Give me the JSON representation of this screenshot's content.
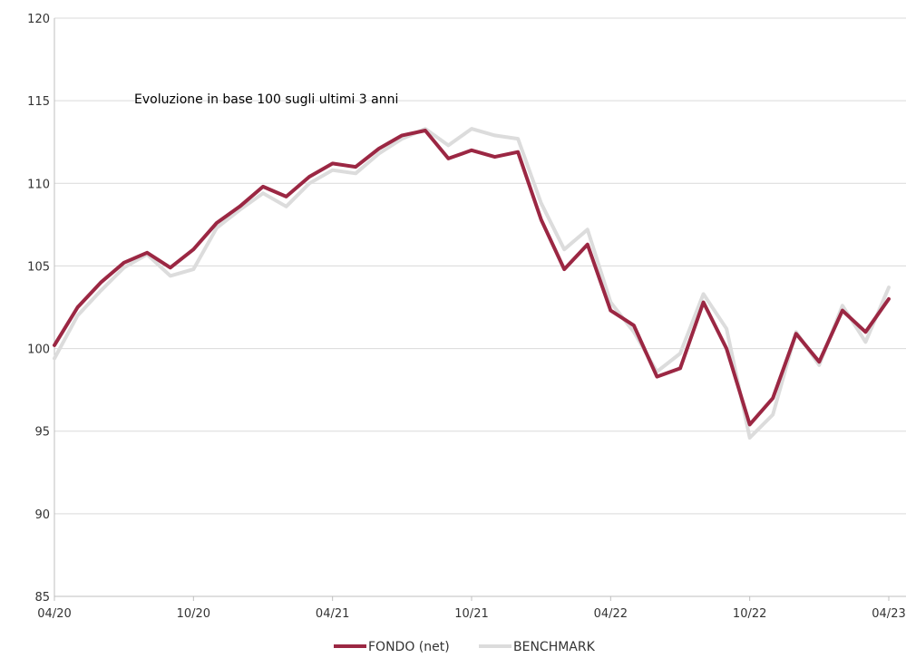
{
  "chart_data": {
    "type": "line",
    "title": "Evoluzione in base 100 sugli ultimi 3 anni",
    "xlabel": "",
    "ylabel": "",
    "x_ticks": [
      "04/20",
      "10/20",
      "04/21",
      "10/21",
      "04/22",
      "10/22",
      "04/23"
    ],
    "x_range": [
      "2020-04",
      "2023-04"
    ],
    "ylim": [
      85,
      120
    ],
    "y_ticks": [
      85,
      90,
      95,
      100,
      105,
      110,
      115,
      120
    ],
    "grid": true,
    "legend_position": "bottom-center",
    "x": [
      "04/20",
      "05/20",
      "06/20",
      "07/20",
      "08/20",
      "09/20",
      "10/20",
      "11/20",
      "12/20",
      "01/21",
      "02/21",
      "03/21",
      "04/21",
      "05/21",
      "06/21",
      "07/21",
      "08/21",
      "09/21",
      "10/21",
      "11/21",
      "12/21",
      "01/22",
      "02/22",
      "03/22",
      "04/22",
      "05/22",
      "06/22",
      "07/22",
      "08/22",
      "09/22",
      "10/22",
      "11/22",
      "12/22",
      "01/23",
      "02/23",
      "03/23",
      "04/23"
    ],
    "series": [
      {
        "name": "FONDO (net)",
        "color": "#9B2743",
        "values": [
          100.2,
          102.5,
          104.0,
          105.2,
          105.8,
          104.9,
          106.0,
          107.6,
          108.6,
          109.8,
          109.2,
          110.4,
          111.2,
          111.0,
          112.1,
          112.9,
          113.2,
          111.5,
          112.0,
          111.6,
          111.9,
          107.8,
          104.8,
          106.3,
          102.3,
          101.4,
          98.3,
          98.8,
          102.8,
          100.0,
          95.4,
          97.0,
          100.9,
          99.2,
          102.3,
          101.0,
          103.0
        ]
      },
      {
        "name": "BENCHMARK",
        "color": "#DCDCDC",
        "values": [
          99.4,
          102.0,
          103.5,
          104.9,
          105.7,
          104.4,
          104.8,
          107.3,
          108.4,
          109.4,
          108.6,
          110.0,
          110.8,
          110.6,
          111.8,
          112.7,
          113.3,
          112.3,
          113.3,
          112.9,
          112.7,
          108.8,
          106.0,
          107.2,
          102.8,
          101.0,
          98.6,
          99.7,
          103.3,
          101.2,
          94.6,
          96.0,
          101.0,
          99.0,
          102.6,
          100.4,
          103.7
        ]
      }
    ]
  }
}
